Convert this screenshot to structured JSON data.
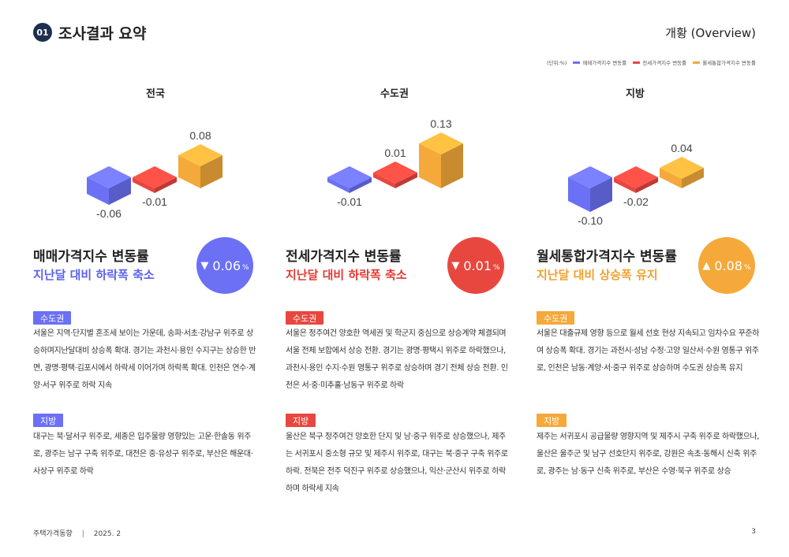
{
  "header": {
    "number": "01",
    "title": "조사결과 요약",
    "right_label": "개황 (Overview)"
  },
  "legend": {
    "unit": "(단위:%)",
    "items": [
      {
        "label": "매매가격지수 변동률",
        "color": "#6b70f5"
      },
      {
        "label": "전세가격지수 변동률",
        "color": "#e8473f"
      },
      {
        "label": "월세통합가격지수 변동률",
        "color": "#f4a93a"
      }
    ]
  },
  "chart_data": [
    {
      "type": "bar",
      "title": "전국",
      "categories": [
        "매매가격지수 변동률",
        "전세가격지수 변동률",
        "월세통합가격지수 변동률"
      ],
      "values": [
        -0.06,
        -0.01,
        0.08
      ],
      "labels": [
        "-0.06",
        "-0.01",
        "0.08"
      ]
    },
    {
      "type": "bar",
      "title": "수도권",
      "categories": [
        "매매가격지수 변동률",
        "전세가격지수 변동률",
        "월세통합가격지수 변동률"
      ],
      "values": [
        -0.01,
        0.01,
        0.13
      ],
      "labels": [
        "-0.01",
        "0.01",
        "0.13"
      ]
    },
    {
      "type": "bar",
      "title": "지방",
      "categories": [
        "매매가격지수 변동률",
        "전세가격지수 변동률",
        "월세통합가격지수 변동률"
      ],
      "values": [
        -0.1,
        -0.02,
        0.04
      ],
      "labels": [
        "-0.10",
        "-0.02",
        "0.04"
      ]
    }
  ],
  "colors": {
    "sale": "#6b70f5",
    "jeonse": "#e8473f",
    "wolse": "#f4a93a"
  },
  "columns": [
    {
      "metric_title": "매매가격지수 변동률",
      "metric_sub": "지난달 대비 하락폭 축소",
      "circle_arrow": "▼",
      "circle_value": "0.06",
      "circle_unit": "%",
      "tag1": "수도권",
      "para1": "서울은 지역·단지별 혼조세 보이는 가운데, 송파·서초·강남구 위주로 상승하며지난달대비 상승폭 확대. 경기는 과천시·용인 수지구는 상승한 반면, 광명·평택·김포시에서 하락세 이어가며 하락폭 확대. 인천은 연수·계양·서구 위주로 하락 지속",
      "tag2": "지방",
      "para2": "대구는 북·달서구 위주로, 세종은 입주물량 영향있는 고운·한솔동 위주로, 광주는 남구 구축 위주로, 대전은 중·유성구 위주로, 부산은 해운대·사상구 위주로 하락"
    },
    {
      "metric_title": "전세가격지수 변동률",
      "metric_sub": "지난달 대비 하락폭 축소",
      "circle_arrow": "▼",
      "circle_value": "0.01",
      "circle_unit": "%",
      "tag1": "수도권",
      "para1": "서울은 정주여건 양호한 역세권 및 학군지 중심으로 상승계약 체결되며 서울 전체 보합에서 상승 전환. 경기는 광명·평택시 위주로 하락했으나, 과천시·용인 수지·수원 영통구 위주로 상승하며 경기 전체 상승 전환. 인천은 서·중·미추홀·남동구 위주로 하락",
      "tag2": "지방",
      "para2": "울산은 북구 정주여건 양호한 단지 및 남·중구 위주로 상승했으나, 제주는 서귀포시 중소형 규모 및 제주시 위주로, 대구는 북·중구 구축 위주로하락. 전북은 전주 덕진구 위주로 상승했으나, 익산·군산시 위주로 하락하며 하락세 지속"
    },
    {
      "metric_title": "월세통합가격지수 변동률",
      "metric_sub": "지난달 대비 상승폭 유지",
      "circle_arrow": "▲",
      "circle_value": "0.08",
      "circle_unit": "%",
      "tag1": "수도권",
      "para1": "서울은 대출규제 영향 등으로 월세 선호 현상 지속되고 임차수요 꾸준하여 상승폭 확대. 경기는 과천시·성남 수정·고양 일산서·수원 영통구 위주로, 인천은 남동·계양·서·중구 위주로 상승하며 수도권 상승폭 유지",
      "tag2": "지방",
      "para2": "제주는 서귀포시 공급물량 영향지역 및 제주시 구축 위주로 하락했으나, 울산은 울주군 및 남구 선호단지 위주로, 강원은 속초·동해시 신축 위주로, 광주는 남·동구 신축 위주로, 부산은 수영·북구 위주로 상승"
    }
  ],
  "footer": {
    "left": "주택가격동향",
    "date": "2025. 2",
    "page": "3"
  }
}
